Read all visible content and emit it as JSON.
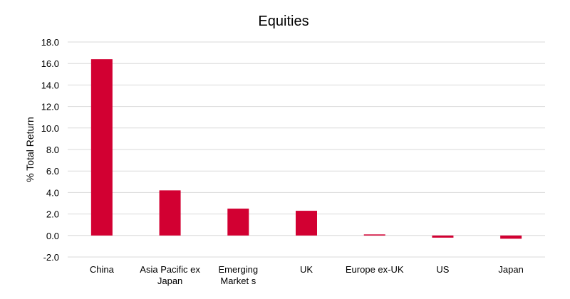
{
  "chart_data": {
    "type": "bar",
    "title": "Equities",
    "xlabel": "",
    "ylabel": "% Total Return",
    "categories": [
      [
        "China"
      ],
      [
        "Asia Pacific ex",
        "Japan"
      ],
      [
        "Emerging",
        "Market s"
      ],
      [
        "UK"
      ],
      [
        "Europe ex-UK"
      ],
      [
        "US"
      ],
      [
        "Japan"
      ]
    ],
    "values": [
      16.4,
      4.2,
      2.5,
      2.3,
      0.1,
      -0.2,
      -0.3
    ],
    "ylim": [
      -2.0,
      18.0
    ],
    "yticks": [
      "-2.0",
      "0.0",
      "2.0",
      "4.0",
      "6.0",
      "8.0",
      "10.0",
      "12.0",
      "14.0",
      "16.0",
      "18.0"
    ],
    "grid": true,
    "legend": "none",
    "bar_color": "#d20032",
    "grid_color": "#d9d9d9"
  }
}
